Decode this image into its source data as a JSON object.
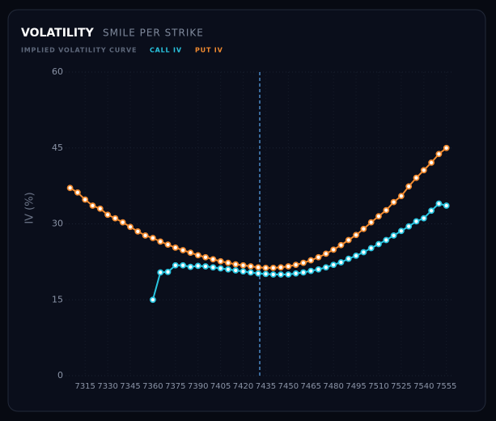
{
  "chart_data": {
    "type": "line",
    "title": "VOLATILITY",
    "subtitle": "SMILE PER STRIKE",
    "legend_title": "IMPLIED VOLATILITY CURVE",
    "y_label": "IV (%)",
    "x": [
      7305,
      7310,
      7315,
      7320,
      7325,
      7330,
      7335,
      7340,
      7345,
      7350,
      7355,
      7360,
      7365,
      7370,
      7375,
      7380,
      7385,
      7390,
      7395,
      7400,
      7405,
      7410,
      7415,
      7420,
      7425,
      7430,
      7435,
      7440,
      7445,
      7450,
      7455,
      7460,
      7465,
      7470,
      7475,
      7480,
      7485,
      7490,
      7495,
      7500,
      7505,
      7510,
      7515,
      7520,
      7525,
      7530,
      7535,
      7540,
      7545,
      7550,
      7555
    ],
    "series": [
      {
        "name": "CALL IV",
        "color": "#29c5e0",
        "values": [
          null,
          null,
          null,
          null,
          null,
          null,
          null,
          null,
          null,
          null,
          null,
          15.0,
          20.4,
          20.5,
          21.8,
          21.8,
          21.5,
          21.7,
          21.6,
          21.4,
          21.2,
          21.0,
          20.8,
          20.6,
          20.4,
          20.2,
          20.1,
          20.0,
          20.0,
          20.0,
          20.2,
          20.4,
          20.7,
          21.0,
          21.4,
          21.9,
          22.4,
          23.1,
          23.7,
          24.4,
          25.2,
          26.0,
          26.8,
          27.7,
          28.6,
          29.5,
          30.5,
          31.1,
          32.6,
          34.0,
          33.6
        ]
      },
      {
        "name": "PUT IV",
        "color": "#f28b30",
        "values": [
          37.1,
          36.2,
          34.8,
          33.6,
          33.0,
          31.8,
          31.1,
          30.3,
          29.4,
          28.5,
          27.7,
          27.2,
          26.5,
          25.9,
          25.3,
          24.8,
          24.3,
          23.8,
          23.4,
          23.0,
          22.6,
          22.3,
          22.0,
          21.8,
          21.6,
          21.4,
          21.3,
          21.3,
          21.4,
          21.6,
          21.9,
          22.3,
          22.8,
          23.4,
          24.1,
          24.9,
          25.8,
          26.8,
          27.8,
          29.0,
          30.3,
          31.5,
          32.7,
          34.3,
          35.5,
          37.4,
          39.1,
          40.6,
          42.1,
          43.8,
          45.0
        ]
      }
    ],
    "spot": 7431,
    "xlim": [
      7302,
      7560
    ],
    "xticks": [
      7315,
      7330,
      7345,
      7360,
      7375,
      7390,
      7405,
      7420,
      7435,
      7450,
      7465,
      7480,
      7495,
      7510,
      7525,
      7540,
      7555
    ],
    "ylim": [
      0,
      60
    ],
    "yticks": [
      0,
      15,
      30,
      45,
      60
    ],
    "grid": true
  }
}
